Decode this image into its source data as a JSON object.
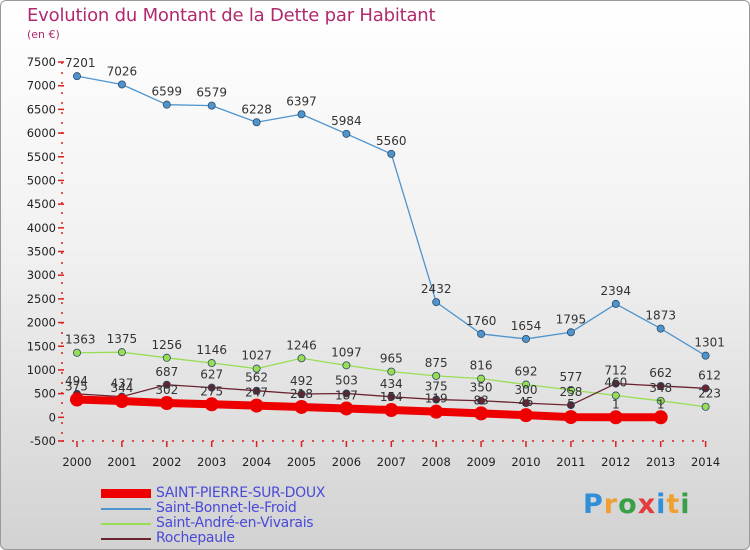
{
  "chart_data": {
    "type": "line",
    "title": "Evolution du Montant de la Dette par Habitant",
    "subtitle": "(en €)",
    "x": [
      "2000",
      "2001",
      "2002",
      "2003",
      "2004",
      "2005",
      "2006",
      "2007",
      "2008",
      "2009",
      "2010",
      "2011",
      "2012",
      "2013",
      "2014"
    ],
    "ylim": [
      -500,
      7500
    ],
    "yticks": [
      -500,
      0,
      500,
      1000,
      1500,
      2000,
      2500,
      3000,
      3500,
      4000,
      4500,
      5000,
      5500,
      6000,
      6500,
      7000,
      7500
    ],
    "grid": false,
    "legend": "bottom-left",
    "series": [
      {
        "name": "SAINT-PIERRE-SUR-DOUX",
        "color": "#ee0000",
        "values": [
          375,
          344,
          302,
          275,
          247,
          218,
          187,
          154,
          119,
          83,
          45,
          5,
          1,
          1,
          null
        ],
        "labels": [
          "375",
          "344",
          "302",
          "275",
          "247",
          "218",
          "187",
          "154",
          "119",
          "83",
          "45",
          "5",
          "1",
          "1",
          ""
        ]
      },
      {
        "name": "Saint-Bonnet-le-Froid",
        "color": "#4f94cd",
        "values": [
          7201,
          7026,
          6599,
          6579,
          6228,
          6397,
          5984,
          5560,
          2432,
          1760,
          1654,
          1795,
          2394,
          1873,
          1301
        ],
        "labels": [
          "7201",
          "7026",
          "6599",
          "6579",
          "6228",
          "6397",
          "5984",
          "5560",
          "2432",
          "1760",
          "1654",
          "1795",
          "2394",
          "1873",
          "1301"
        ]
      },
      {
        "name": "Saint-André-en-Vivarais",
        "color": "#99dd55",
        "values": [
          1363,
          1375,
          1256,
          1146,
          1027,
          1246,
          1097,
          965,
          875,
          816,
          692,
          577,
          460,
          348,
          223
        ],
        "labels": [
          "1363",
          "1375",
          "1256",
          "1146",
          "1027",
          "1246",
          "1097",
          "965",
          "875",
          "816",
          "692",
          "577",
          "460",
          "348",
          "223"
        ]
      },
      {
        "name": "Rochepaule",
        "color": "#6b2330",
        "values": [
          494,
          437,
          687,
          627,
          562,
          492,
          503,
          434,
          375,
          350,
          300,
          258,
          712,
          662,
          612
        ],
        "labels": [
          "494",
          "437",
          "687",
          "627",
          "562",
          "492",
          "503",
          "434",
          "375",
          "350",
          "300",
          "258",
          "712",
          "662",
          "612"
        ]
      }
    ]
  },
  "brand": {
    "letters": [
      "P",
      "r",
      "o",
      "x",
      "i",
      "t",
      "i"
    ],
    "colors": [
      "#2f8fd8",
      "#f0a030",
      "#3aa048",
      "#e43c3c",
      "#2f8fd8",
      "#f0a030",
      "#3aa048"
    ]
  }
}
